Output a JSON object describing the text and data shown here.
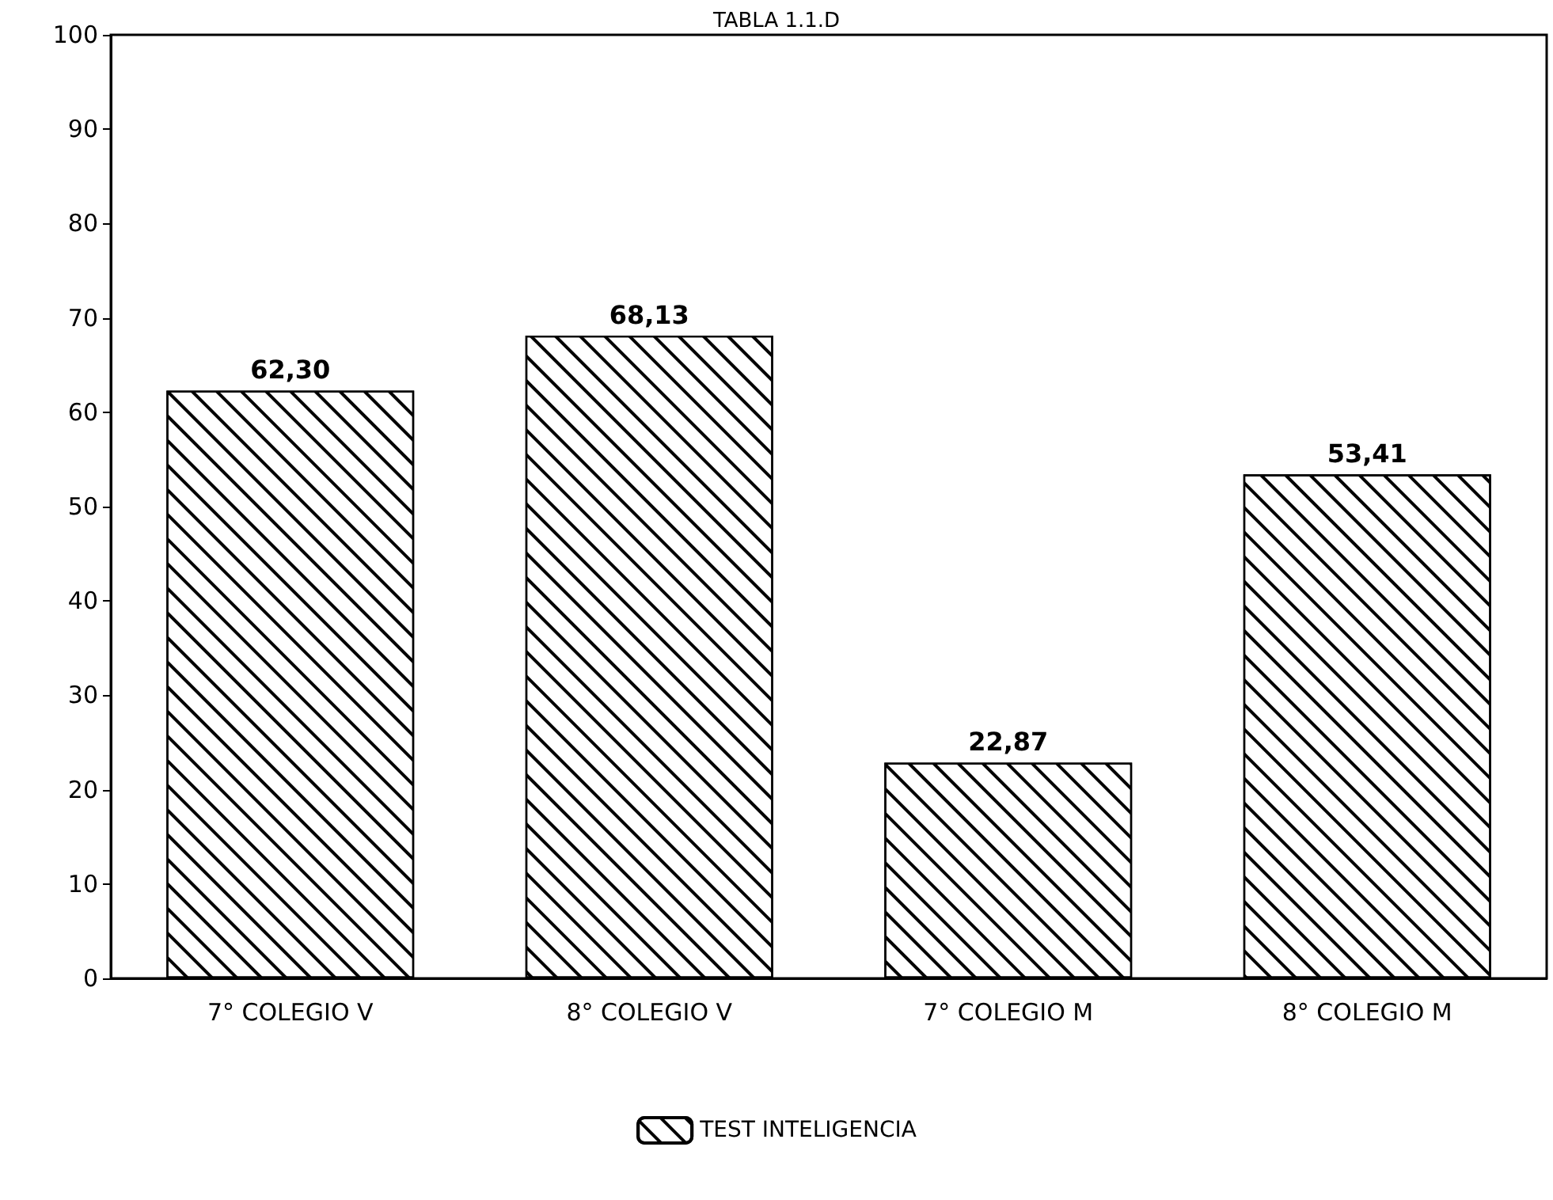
{
  "chart_data": {
    "type": "bar",
    "title": "TABLA 1.1.D",
    "categories": [
      "7° COLEGIO V",
      "8° COLEGIO V",
      "7° COLEGIO M",
      "8° COLEGIO M"
    ],
    "series": [
      {
        "name": "TEST INTELIGENCIA",
        "color": "#ffffff",
        "values": [
          62.3,
          68.13,
          22.87,
          53.41
        ],
        "value_labels": [
          "62,30",
          "68,13",
          "22,87",
          "53,41"
        ]
      }
    ],
    "ylim": [
      0,
      100
    ],
    "yticks": [
      0,
      10,
      20,
      30,
      40,
      50,
      60,
      70,
      80,
      90,
      100
    ],
    "grid": false,
    "legend": "bottom"
  }
}
